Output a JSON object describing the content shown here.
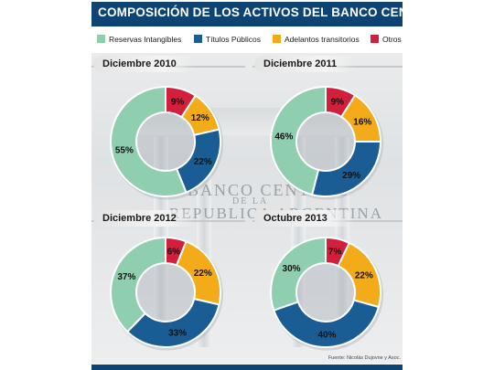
{
  "title": "COMPOSICIÓN DE LOS ACTIVOS DEL BANCO CENTRAL",
  "legend": [
    {
      "label": "Reservas Intangibles",
      "color": "#8fcfb0"
    },
    {
      "label": "Títulos Públicos",
      "color": "#1a5d94"
    },
    {
      "label": "Adelantos transitorios",
      "color": "#f3ab19"
    },
    {
      "label": "Otros",
      "color": "#d21f3c"
    }
  ],
  "background": {
    "line1": "BANCO CENTRAL",
    "line2": "DE LA",
    "line3": "REPUBLICA ARGENTINA"
  },
  "chart_data": [
    {
      "type": "pie",
      "title": "Diciembre 2010",
      "categories": [
        "Reservas Intangibles",
        "Títulos Públicos",
        "Adelantos transitorios",
        "Otros"
      ],
      "values": [
        55,
        22,
        12,
        9
      ],
      "labels": [
        "55%",
        "22%",
        "12%",
        "9%"
      ]
    },
    {
      "type": "pie",
      "title": "Diciembre 2011",
      "categories": [
        "Reservas Intangibles",
        "Títulos Públicos",
        "Adelantos transitorios",
        "Otros"
      ],
      "values": [
        46,
        29,
        16,
        9
      ],
      "labels": [
        "46%",
        "29%",
        "16%",
        "9%"
      ]
    },
    {
      "type": "pie",
      "title": "Diciembre 2012",
      "categories": [
        "Reservas Intangibles",
        "Títulos Públicos",
        "Adelantos transitorios",
        "Otros"
      ],
      "values": [
        37,
        33,
        22,
        6
      ],
      "labels": [
        "37%",
        "33%",
        "22%",
        "6%"
      ]
    },
    {
      "type": "pie",
      "title": "Octubre 2013",
      "categories": [
        "Reservas Intangibles",
        "Títulos Públicos",
        "Adelantos transitorios",
        "Otros"
      ],
      "values": [
        30,
        40,
        22,
        7
      ],
      "labels": [
        "30%",
        "40%",
        "22%",
        "7%"
      ]
    }
  ],
  "source": "Fuente: Nicolás Dujovne y Asoc."
}
